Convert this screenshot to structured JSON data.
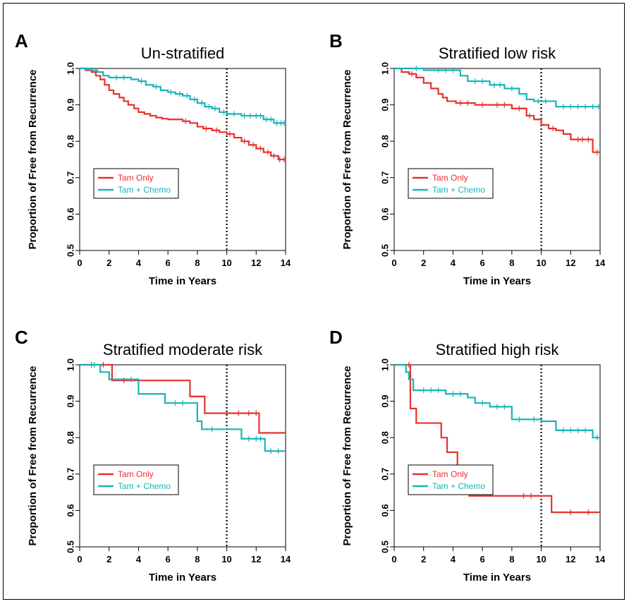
{
  "chart_data": [
    {
      "type": "line",
      "panel_letter": "A",
      "title": "Un-stratified",
      "xlabel": "Time in Years",
      "ylabel": "Proportion of Free from Recurrence",
      "xlim": [
        0,
        14
      ],
      "ylim": [
        0.5,
        1.0
      ],
      "xticks": [
        0,
        2,
        4,
        6,
        8,
        10,
        12,
        14
      ],
      "yticks": [
        0.5,
        0.6,
        0.7,
        0.8,
        0.9,
        1.0
      ],
      "vline_x": 10,
      "legend_position": "lower-left",
      "series": [
        {
          "name": "Tam Only",
          "color": "#e8312f",
          "step": true,
          "x": [
            0,
            0.4,
            0.8,
            1.1,
            1.4,
            1.7,
            2.0,
            2.3,
            2.7,
            3.0,
            3.3,
            3.7,
            4.0,
            4.4,
            4.8,
            5.2,
            5.6,
            6.0,
            7.0,
            7.5,
            8.0,
            8.4,
            9.0,
            9.5,
            10.0,
            10.5,
            11.0,
            11.5,
            12.0,
            12.5,
            13.0,
            13.5,
            14.0
          ],
          "y": [
            1.0,
            0.995,
            0.99,
            0.98,
            0.97,
            0.955,
            0.94,
            0.93,
            0.92,
            0.91,
            0.9,
            0.89,
            0.88,
            0.875,
            0.87,
            0.865,
            0.862,
            0.86,
            0.855,
            0.85,
            0.84,
            0.835,
            0.83,
            0.825,
            0.82,
            0.81,
            0.8,
            0.79,
            0.78,
            0.77,
            0.76,
            0.75,
            0.75
          ],
          "censor_x": [
            7.2,
            8.6,
            9.3,
            10.2,
            11.2,
            11.8,
            12.3,
            12.8,
            13.2,
            13.6,
            13.9
          ]
        },
        {
          "name": "Tam + Chemo",
          "color": "#1ab3b7",
          "step": true,
          "x": [
            0,
            0.8,
            1.2,
            1.6,
            2.0,
            3.5,
            4.0,
            4.5,
            5.0,
            5.5,
            6.0,
            6.5,
            7.0,
            7.5,
            8.0,
            8.5,
            9.0,
            9.5,
            10.0,
            11.0,
            12.5,
            13.2,
            14.0
          ],
          "y": [
            1.0,
            0.995,
            0.99,
            0.98,
            0.975,
            0.97,
            0.965,
            0.955,
            0.95,
            0.94,
            0.935,
            0.93,
            0.925,
            0.915,
            0.905,
            0.895,
            0.89,
            0.88,
            0.875,
            0.87,
            0.86,
            0.85,
            0.85
          ],
          "censor_x": [
            2.5,
            3.0,
            4.2,
            5.2,
            6.2,
            6.8,
            7.3,
            7.8,
            8.3,
            8.8,
            9.2,
            9.8,
            10.5,
            11.2,
            11.6,
            12.0,
            12.3,
            12.7,
            13.0,
            13.4,
            13.7,
            13.9
          ]
        }
      ]
    },
    {
      "type": "line",
      "panel_letter": "B",
      "title": "Stratified low risk",
      "xlabel": "Time in Years",
      "ylabel": "Proportion of Free from Recurrence",
      "xlim": [
        0,
        14
      ],
      "ylim": [
        0.5,
        1.0
      ],
      "xticks": [
        0,
        2,
        4,
        6,
        8,
        10,
        12,
        14
      ],
      "yticks": [
        0.5,
        0.6,
        0.7,
        0.8,
        0.9,
        1.0
      ],
      "vline_x": 10,
      "legend_position": "lower-left",
      "series": [
        {
          "name": "Tam Only",
          "color": "#e8312f",
          "step": true,
          "x": [
            0,
            0.5,
            1.0,
            1.5,
            2.0,
            2.5,
            3.0,
            3.3,
            3.6,
            4.2,
            5.5,
            8.0,
            9.0,
            9.5,
            10.0,
            10.5,
            11.0,
            11.5,
            12.0,
            13.5,
            14.0
          ],
          "y": [
            1.0,
            0.99,
            0.985,
            0.975,
            0.96,
            0.945,
            0.93,
            0.92,
            0.91,
            0.905,
            0.9,
            0.89,
            0.87,
            0.86,
            0.845,
            0.835,
            0.83,
            0.82,
            0.805,
            0.77,
            0.77
          ],
          "censor_x": [
            1.2,
            4.5,
            5.0,
            6.0,
            7.0,
            7.5,
            8.5,
            9.2,
            10.8,
            12.5,
            12.8,
            13.2,
            13.8
          ]
        },
        {
          "name": "Tam + Chemo",
          "color": "#1ab3b7",
          "step": true,
          "x": [
            0,
            2.0,
            4.5,
            5.0,
            6.5,
            7.5,
            8.5,
            9.0,
            9.5,
            11.0,
            14.0
          ],
          "y": [
            1.0,
            0.995,
            0.98,
            0.965,
            0.955,
            0.945,
            0.93,
            0.915,
            0.91,
            0.895,
            0.895
          ],
          "censor_x": [
            1.5,
            3.0,
            3.5,
            4.0,
            5.5,
            6.0,
            6.8,
            7.2,
            8.0,
            9.8,
            10.3,
            11.5,
            12.0,
            12.5,
            13.0,
            13.5,
            13.9
          ]
        }
      ]
    },
    {
      "type": "line",
      "panel_letter": "C",
      "title": "Stratified moderate risk",
      "xlabel": "Time in Years",
      "ylabel": "Proportion of Free from Recurrence",
      "xlim": [
        0,
        14
      ],
      "ylim": [
        0.5,
        1.0
      ],
      "xticks": [
        0,
        2,
        4,
        6,
        8,
        10,
        12,
        14
      ],
      "yticks": [
        0.5,
        0.6,
        0.7,
        0.8,
        0.9,
        1.0
      ],
      "vline_x": 10,
      "legend_position": "lower-left",
      "series": [
        {
          "name": "Tam Only",
          "color": "#e8312f",
          "step": true,
          "x": [
            0,
            2.2,
            4.0,
            7.5,
            8.5,
            12.2,
            14.0
          ],
          "y": [
            1.0,
            0.957,
            0.957,
            0.913,
            0.867,
            0.813,
            0.813
          ],
          "censor_x": [
            0.8,
            1.6,
            3.0,
            10.8,
            11.5,
            12.0
          ]
        },
        {
          "name": "Tam + Chemo",
          "color": "#1ab3b7",
          "step": true,
          "x": [
            0,
            1.4,
            2.0,
            4.0,
            5.8,
            8.0,
            8.3,
            11.0,
            12.6,
            14.0
          ],
          "y": [
            1.0,
            0.98,
            0.96,
            0.92,
            0.895,
            0.845,
            0.823,
            0.797,
            0.763,
            0.763
          ],
          "censor_x": [
            1.0,
            3.5,
            6.5,
            7.0,
            9.0,
            11.5,
            12.0,
            12.3,
            13.0,
            13.5
          ]
        }
      ]
    },
    {
      "type": "line",
      "panel_letter": "D",
      "title": "Stratified high risk",
      "xlabel": "Time in Years",
      "ylabel": "Proportion of Free from Recurrence",
      "xlim": [
        0,
        14
      ],
      "ylim": [
        0.5,
        1.0
      ],
      "xticks": [
        0,
        2,
        4,
        6,
        8,
        10,
        12,
        14
      ],
      "yticks": [
        0.5,
        0.6,
        0.7,
        0.8,
        0.9,
        1.0
      ],
      "vline_x": 10,
      "legend_position": "lower-left",
      "series": [
        {
          "name": "Tam Only",
          "color": "#e8312f",
          "step": true,
          "x": [
            0,
            1.1,
            1.5,
            3.2,
            3.6,
            4.3,
            4.9,
            5.1,
            10.7,
            14.0
          ],
          "y": [
            1.0,
            0.88,
            0.84,
            0.8,
            0.76,
            0.72,
            0.68,
            0.64,
            0.595,
            0.595
          ],
          "censor_x": [
            1.0,
            8.8,
            9.3,
            12.0,
            13.2
          ]
        },
        {
          "name": "Tam + Chemo",
          "color": "#1ab3b7",
          "step": true,
          "x": [
            0,
            0.8,
            1.0,
            1.3,
            3.5,
            5.0,
            5.5,
            6.5,
            8.0,
            10.0,
            11.0,
            13.5,
            14.0
          ],
          "y": [
            1.0,
            0.98,
            0.96,
            0.93,
            0.92,
            0.91,
            0.895,
            0.885,
            0.85,
            0.845,
            0.82,
            0.8,
            0.8
          ],
          "censor_x": [
            2.0,
            2.5,
            3.0,
            4.0,
            4.5,
            6.0,
            7.0,
            7.5,
            8.5,
            9.5,
            11.5,
            12.0,
            12.5,
            13.0,
            13.8
          ]
        }
      ]
    }
  ]
}
